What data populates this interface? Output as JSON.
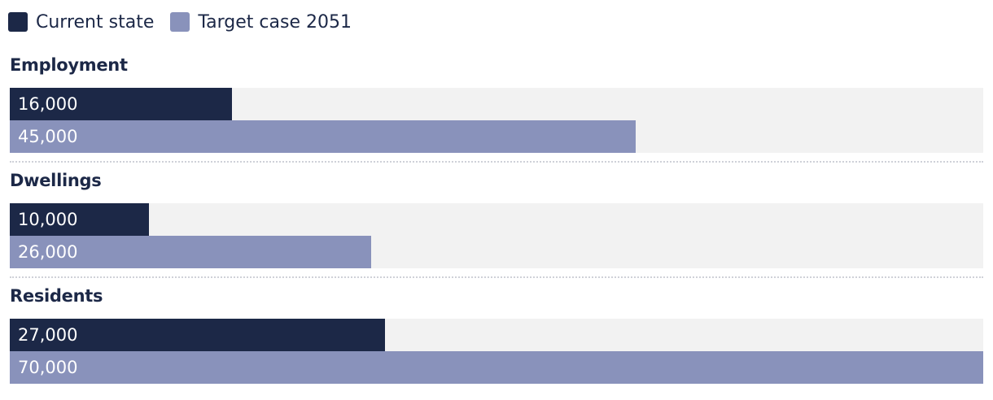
{
  "colors": {
    "current": "#1c2847",
    "target": "#8992bb",
    "track": "#f2f2f2"
  },
  "chart_data": {
    "type": "bar",
    "orientation": "horizontal",
    "categories": [
      "Employment",
      "Dwellings",
      "Residents"
    ],
    "series": [
      {
        "name": "Current state",
        "values": [
          16000,
          10000,
          27000
        ],
        "labels": [
          "16,000",
          "10,000",
          "27,000"
        ]
      },
      {
        "name": "Target case 2051",
        "values": [
          45000,
          26000,
          70000
        ],
        "labels": [
          "45,000",
          "26,000",
          "70,000"
        ]
      }
    ],
    "xlim": [
      0,
      70000
    ],
    "legend": "top-left",
    "grid": false
  }
}
